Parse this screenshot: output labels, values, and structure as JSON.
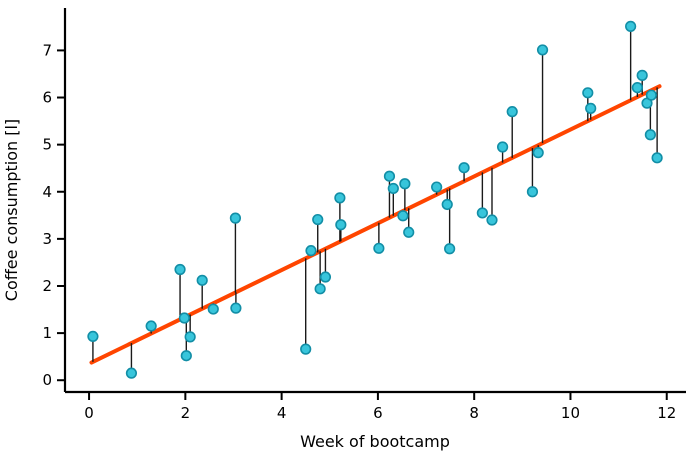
{
  "chart_data": {
    "type": "scatter",
    "title": "",
    "xlabel": "Week of bootcamp",
    "ylabel": "Coffee consumption [l]",
    "xlim": [
      -0.5,
      12.4
    ],
    "ylim": [
      -0.25,
      7.9
    ],
    "x_ticks": [
      0,
      2,
      4,
      6,
      8,
      10,
      12
    ],
    "y_ticks": [
      0,
      1,
      2,
      3,
      4,
      5,
      6,
      7
    ],
    "grid": false,
    "legend": false,
    "points": [
      [
        0.08,
        0.93
      ],
      [
        0.88,
        0.15
      ],
      [
        1.29,
        1.15
      ],
      [
        1.89,
        2.35
      ],
      [
        1.98,
        1.32
      ],
      [
        2.02,
        0.52
      ],
      [
        2.1,
        0.92
      ],
      [
        2.35,
        2.12
      ],
      [
        2.58,
        1.51
      ],
      [
        3.04,
        3.44
      ],
      [
        3.05,
        1.53
      ],
      [
        4.5,
        0.66
      ],
      [
        4.61,
        2.75
      ],
      [
        4.75,
        3.41
      ],
      [
        4.8,
        1.94
      ],
      [
        4.91,
        2.19
      ],
      [
        5.21,
        3.87
      ],
      [
        5.23,
        3.3
      ],
      [
        6.02,
        2.8
      ],
      [
        6.24,
        4.33
      ],
      [
        6.32,
        4.07
      ],
      [
        6.52,
        3.49
      ],
      [
        6.56,
        4.17
      ],
      [
        6.64,
        3.14
      ],
      [
        7.22,
        4.1
      ],
      [
        7.44,
        3.73
      ],
      [
        7.49,
        2.79
      ],
      [
        7.79,
        4.51
      ],
      [
        8.17,
        3.55
      ],
      [
        8.37,
        3.4
      ],
      [
        8.59,
        4.95
      ],
      [
        8.79,
        5.7
      ],
      [
        9.21,
        4.0
      ],
      [
        9.33,
        4.83
      ],
      [
        9.42,
        7.01
      ],
      [
        10.36,
        6.1
      ],
      [
        10.42,
        5.77
      ],
      [
        11.25,
        7.51
      ],
      [
        11.39,
        6.21
      ],
      [
        11.49,
        6.47
      ],
      [
        11.59,
        5.88
      ],
      [
        11.66,
        5.21
      ],
      [
        11.68,
        6.05
      ],
      [
        11.8,
        4.72
      ]
    ],
    "regression_line": {
      "slope": 0.497,
      "intercept": 0.35,
      "x_start": 0.05,
      "x_end": 11.85
    },
    "residual_stems": true,
    "colors": {
      "marker_fill": "#38c5db",
      "marker_edge": "#128ea6",
      "line": "#ff4500",
      "stem": "#1a1a1a",
      "axis": "#000000"
    }
  }
}
